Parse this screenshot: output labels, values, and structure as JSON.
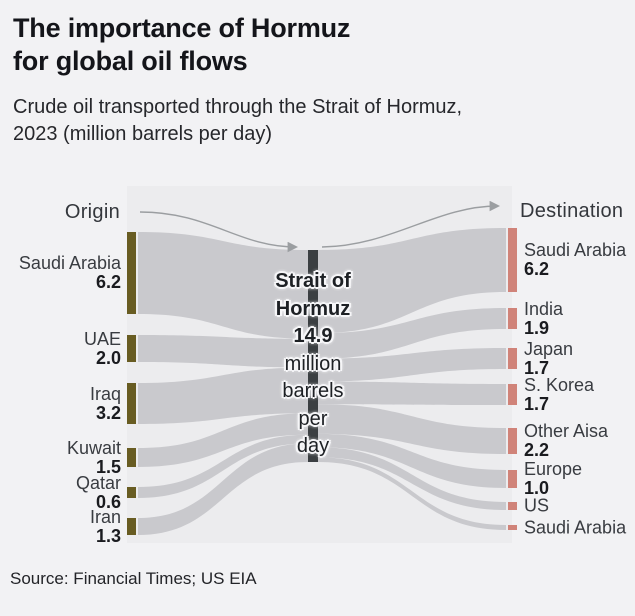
{
  "header": {
    "title_line1": "The importance of Hormuz",
    "title_line2": "for global oil flows",
    "subtitle_line1": "Crude oil transported through the Strait of Hormuz,",
    "subtitle_line2": "2023 (million barrels per day)"
  },
  "source": "Source: Financial Times; US EIA",
  "chart_data": {
    "type": "sankey",
    "unit": "million barrels per day",
    "origin_header": "Origin",
    "destination_header": "Destination",
    "center_label": {
      "lines": [
        "Strait of",
        "Hormuz",
        "14.9",
        "million",
        "barrels",
        "per",
        "day"
      ],
      "bold_line_count": 3,
      "total": 14.9
    },
    "origins": [
      {
        "name": "Saudi Arabia",
        "value": 6.2
      },
      {
        "name": "UAE",
        "value": 2.0
      },
      {
        "name": "Iraq",
        "value": 3.2
      },
      {
        "name": "Kuwait",
        "value": 1.5
      },
      {
        "name": "Qatar",
        "value": 0.6
      },
      {
        "name": "Iran",
        "value": 1.3
      }
    ],
    "destinations": [
      {
        "name": "Saudi Arabia",
        "value": 6.2
      },
      {
        "name": "India",
        "value": 1.9
      },
      {
        "name": "Japan",
        "value": 1.7
      },
      {
        "name": "S. Korea",
        "value": 1.7
      },
      {
        "name": "Other Aisa",
        "value": 2.2
      },
      {
        "name": "Europe",
        "value": 1.0
      },
      {
        "name": "US",
        "value": null
      },
      {
        "name": "Saudi Arabia",
        "value": null
      }
    ],
    "colors": {
      "origin_node": "#685c22",
      "destination_node": "#d08379",
      "center_node": "#3b3f42",
      "flow": "#c9c9cd",
      "panel": "#ececee",
      "arrow": "#9b9ea1"
    }
  }
}
